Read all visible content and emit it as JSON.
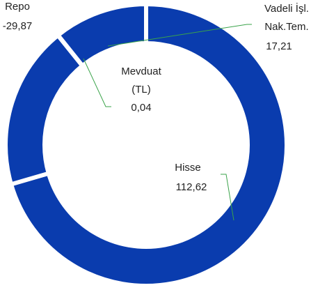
{
  "chart_data": {
    "type": "donut",
    "categories": [
      "Hisse",
      "Repo",
      "Mevduat (TL)",
      "Vadeli İşl. Nak.Tem."
    ],
    "values": [
      112.62,
      -29.87,
      0.04,
      17.21
    ],
    "value_labels": [
      "112,62",
      "-29,87",
      "0,04",
      "17,21"
    ],
    "color": "#0a3cae",
    "leader_color": "#3aa34a"
  }
}
